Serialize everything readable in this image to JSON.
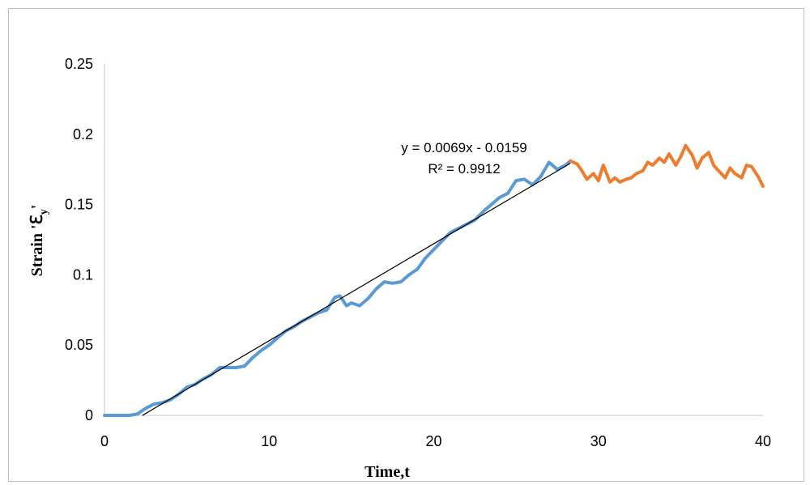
{
  "chart_data": {
    "type": "line",
    "title": "",
    "xlabel": "Time,t",
    "ylabel_main": "Strain '",
    "ylabel_symbol": "ℇ",
    "ylabel_sub": "y",
    "ylabel_end": "'",
    "xlim": [
      0,
      40
    ],
    "ylim": [
      0,
      0.25
    ],
    "xticks": [
      "0",
      "10",
      "20",
      "30",
      "40"
    ],
    "yticks": [
      "0",
      "0.05",
      "0.1",
      "0.15",
      "0.2",
      "0.25"
    ],
    "grid": false,
    "legend": "none",
    "series": [
      {
        "color": "#5b9bd5",
        "x": [
          0,
          0.5,
          1.0,
          1.5,
          2.0,
          2.5,
          3.0,
          3.5,
          4.0,
          4.5,
          5.0,
          5.5,
          6.0,
          6.5,
          7.0,
          7.5,
          8.0,
          8.5,
          9.0,
          9.5,
          10.0,
          10.5,
          11.0,
          11.5,
          12.0,
          12.5,
          13.0,
          13.5,
          14.0,
          14.3,
          14.7,
          15.0,
          15.5,
          16.0,
          16.5,
          17.0,
          17.5,
          18.0,
          18.5,
          19.0,
          19.5,
          20.0,
          20.5,
          21.0,
          21.5,
          22.0,
          22.5,
          23.0,
          23.5,
          24.0,
          24.5,
          25.0,
          25.5,
          26.0,
          26.5,
          27.0,
          27.5,
          28.0,
          28.3
        ],
        "y": [
          0.0,
          0.0,
          0.0,
          0.0,
          0.001,
          0.005,
          0.008,
          0.009,
          0.011,
          0.015,
          0.02,
          0.022,
          0.026,
          0.029,
          0.034,
          0.034,
          0.034,
          0.035,
          0.041,
          0.046,
          0.05,
          0.055,
          0.06,
          0.063,
          0.067,
          0.07,
          0.073,
          0.075,
          0.084,
          0.085,
          0.078,
          0.08,
          0.078,
          0.083,
          0.09,
          0.095,
          0.094,
          0.095,
          0.1,
          0.104,
          0.112,
          0.118,
          0.124,
          0.13,
          0.133,
          0.136,
          0.139,
          0.145,
          0.15,
          0.155,
          0.158,
          0.167,
          0.168,
          0.164,
          0.17,
          0.18,
          0.175,
          0.178,
          0.181
        ]
      },
      {
        "color": "#ed7d31",
        "x": [
          28.3,
          28.7,
          29.0,
          29.3,
          29.7,
          30.0,
          30.3,
          30.7,
          31.0,
          31.3,
          31.7,
          32.0,
          32.3,
          32.7,
          33.0,
          33.3,
          33.7,
          34.0,
          34.3,
          34.7,
          35.0,
          35.3,
          35.7,
          36.0,
          36.3,
          36.7,
          37.0,
          37.3,
          37.7,
          38.0,
          38.3,
          38.7,
          39.0,
          39.3,
          39.7,
          40.0
        ],
        "y": [
          0.181,
          0.179,
          0.174,
          0.168,
          0.172,
          0.167,
          0.178,
          0.166,
          0.169,
          0.166,
          0.168,
          0.169,
          0.172,
          0.174,
          0.18,
          0.178,
          0.183,
          0.18,
          0.186,
          0.178,
          0.184,
          0.192,
          0.185,
          0.176,
          0.183,
          0.187,
          0.178,
          0.174,
          0.169,
          0.176,
          0.172,
          0.169,
          0.178,
          0.177,
          0.17,
          0.163
        ]
      }
    ],
    "trendline": {
      "color": "#000000",
      "slope": 0.0069,
      "intercept": -0.0159,
      "x_range": [
        2.3,
        28.3
      ],
      "equation": "y = 0.0069x - 0.0159",
      "r2": "R² = 0.9912"
    }
  }
}
